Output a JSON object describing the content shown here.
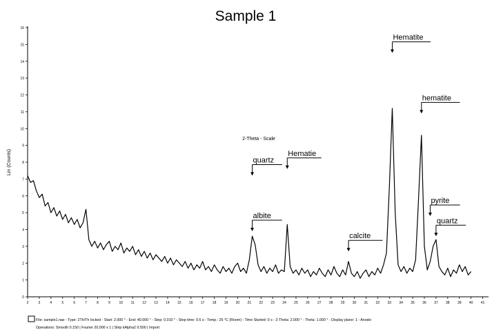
{
  "chart_data": {
    "type": "line",
    "title": "Sample 1",
    "x_label": "2-Theta - Scale",
    "y_label": "Lin (Counts)",
    "color": "#000000",
    "xlim": [
      2,
      41.5
    ],
    "xticks": [
      2,
      3,
      4,
      5,
      6,
      7,
      8,
      9,
      10,
      11,
      12,
      13,
      14,
      15,
      16,
      17,
      18,
      19,
      20,
      21,
      22,
      23,
      24,
      25,
      26,
      27,
      28,
      29,
      30,
      31,
      32,
      33,
      34,
      35,
      36,
      37,
      38,
      39,
      40,
      41
    ],
    "ylim": [
      0,
      16
    ],
    "yticks": [
      0,
      1,
      2,
      3,
      4,
      5,
      6,
      7,
      8,
      9,
      10,
      11,
      12,
      13,
      14,
      15,
      16
    ],
    "x": [
      2,
      2.25,
      2.5,
      2.75,
      3,
      3.25,
      3.5,
      3.75,
      4,
      4.25,
      4.5,
      4.75,
      5,
      5.25,
      5.5,
      5.75,
      6,
      6.25,
      6.5,
      6.75,
      7,
      7.25,
      7.5,
      7.75,
      8,
      8.25,
      8.5,
      8.75,
      9,
      9.25,
      9.5,
      9.75,
      10,
      10.25,
      10.5,
      10.75,
      11,
      11.25,
      11.5,
      11.75,
      12,
      12.25,
      12.5,
      12.75,
      13,
      13.25,
      13.5,
      13.75,
      14,
      14.25,
      14.5,
      14.75,
      15,
      15.25,
      15.5,
      15.75,
      16,
      16.25,
      16.5,
      16.75,
      17,
      17.25,
      17.5,
      17.75,
      18,
      18.25,
      18.5,
      18.75,
      19,
      19.25,
      19.5,
      19.75,
      20,
      20.25,
      20.5,
      20.75,
      21,
      21.25,
      21.5,
      21.75,
      22,
      22.25,
      22.5,
      22.75,
      23,
      23.25,
      23.5,
      23.75,
      24,
      24.25,
      24.5,
      24.75,
      25,
      25.25,
      25.5,
      25.75,
      26,
      26.25,
      26.5,
      26.75,
      27,
      27.25,
      27.5,
      27.75,
      28,
      28.25,
      28.5,
      28.75,
      29,
      29.25,
      29.5,
      29.75,
      30,
      30.25,
      30.5,
      30.75,
      31,
      31.25,
      31.5,
      31.75,
      32,
      32.25,
      32.5,
      32.75,
      33,
      33.25,
      33.5,
      33.75,
      34,
      34.25,
      34.5,
      34.75,
      35,
      35.25,
      35.5,
      35.75,
      36,
      36.25,
      36.5,
      36.75,
      37,
      37.25,
      37.5,
      37.75,
      38,
      38.25,
      38.5,
      38.75,
      39,
      39.25,
      39.5,
      39.75,
      40
    ],
    "values": [
      7.2,
      6.8,
      6.9,
      6.3,
      5.9,
      6.1,
      5.4,
      5.6,
      5.0,
      5.3,
      4.8,
      5.1,
      4.6,
      4.9,
      4.4,
      4.7,
      4.3,
      4.6,
      4.1,
      4.4,
      5.2,
      3.4,
      3.0,
      3.3,
      2.9,
      3.2,
      2.8,
      3.1,
      3.3,
      2.7,
      3.0,
      2.8,
      3.2,
      2.6,
      2.9,
      2.7,
      3.0,
      2.5,
      2.8,
      2.4,
      2.7,
      2.3,
      2.6,
      2.2,
      2.5,
      2.3,
      2.1,
      2.4,
      2.0,
      2.3,
      1.9,
      2.2,
      2.0,
      1.8,
      2.1,
      1.7,
      2.0,
      1.6,
      1.9,
      1.7,
      2.1,
      1.6,
      1.8,
      1.5,
      1.9,
      1.6,
      1.4,
      1.8,
      1.5,
      1.7,
      1.4,
      1.8,
      2.0,
      1.5,
      1.7,
      1.4,
      2.2,
      3.6,
      3.1,
      1.9,
      1.5,
      1.8,
      1.4,
      1.7,
      1.5,
      1.9,
      1.4,
      1.6,
      1.5,
      4.3,
      1.8,
      1.4,
      1.6,
      1.3,
      1.7,
      1.4,
      1.6,
      1.2,
      1.5,
      1.3,
      1.7,
      1.4,
      1.2,
      1.6,
      1.3,
      1.8,
      1.4,
      1.2,
      1.6,
      1.3,
      2.1,
      1.4,
      1.2,
      1.5,
      1.1,
      1.4,
      1.6,
      1.2,
      1.5,
      1.3,
      1.7,
      1.4,
      1.9,
      2.6,
      6.5,
      11.2,
      5.0,
      1.9,
      1.5,
      1.8,
      1.4,
      1.7,
      1.5,
      2.2,
      5.8,
      9.6,
      3.0,
      1.6,
      2.1,
      3.0,
      3.4,
      1.8,
      1.5,
      1.3,
      1.7,
      1.2,
      1.6,
      1.4,
      1.9,
      1.5,
      1.8,
      1.3,
      1.5
    ],
    "annotations": [
      {
        "text": "quartz",
        "x": 21.25,
        "y": 7.2
      },
      {
        "text": "Hematie",
        "x": 24.25,
        "y": 7.6
      },
      {
        "text": "Hematite",
        "x": 33.25,
        "y": 14.5
      },
      {
        "text": "hematite",
        "x": 35.75,
        "y": 10.9
      },
      {
        "text": "albite",
        "x": 21.25,
        "y": 3.9
      },
      {
        "text": "calcite",
        "x": 29.5,
        "y": 2.7
      },
      {
        "text": "pyrite",
        "x": 36.5,
        "y": 4.8
      },
      {
        "text": "quartz",
        "x": 37.0,
        "y": 3.6
      }
    ],
    "footer": [
      "File: sample1.raw - Type: 2Th/Th locked - Start: 2.000 ° - End: 40.000 ° - Step: 0.010 ° - Step time: 0.6 s - Temp.: 25 °C (Room) - Time Started: 0 s - 2-Theta: 2.000 ° - Theta: 1.000 ° - Display plane: 1 - Anode:",
      "Operations: Smooth 0.150 | Fourier 20.000 x 1 | Strip kAlpha2 0.500 | Import"
    ]
  }
}
